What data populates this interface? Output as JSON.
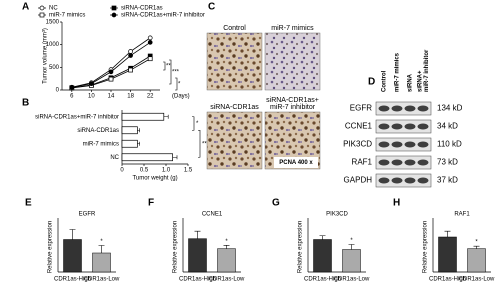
{
  "panels": [
    "A",
    "B",
    "C",
    "D",
    "E",
    "F",
    "G",
    "H"
  ],
  "chart_data": [
    {
      "type": "line",
      "y_label": "Tumor volume (mm³)",
      "x_label": "(Days)",
      "x": [
        6,
        10,
        14,
        18,
        22
      ],
      "xlim": [
        4,
        24
      ],
      "xticks": [
        6,
        10,
        14,
        18,
        22
      ],
      "ylim": [
        0,
        1500
      ],
      "yticks": [
        0,
        500,
        1000,
        1500
      ],
      "series": [
        {
          "name": "NC",
          "color": "#000000",
          "marker": "circle-open",
          "values": [
            60,
            160,
            450,
            850,
            1150
          ]
        },
        {
          "name": "siRNA-CDR1as",
          "color": "#000000",
          "marker": "square-filled",
          "values": [
            50,
            110,
            270,
            480,
            750
          ]
        },
        {
          "name": "miR-7 mimics",
          "color": "#000000",
          "marker": "square-open",
          "values": [
            45,
            100,
            240,
            440,
            690
          ]
        },
        {
          "name": "siRNA-CDR1as+miR-7 inhibitor",
          "color": "#000000",
          "marker": "circle-filled",
          "values": [
            55,
            140,
            400,
            760,
            1050
          ]
        }
      ],
      "annotations": [
        "**",
        "***",
        "*"
      ]
    },
    {
      "type": "barh",
      "x_label": "Tumor weight (g)",
      "categories": [
        "siRNA-CDR1as+miR-7 inhibitor",
        "siRNA-CDR1as",
        "miR-7 mimics",
        "NC"
      ],
      "values": [
        0.95,
        0.35,
        0.35,
        1.15
      ],
      "errors": [
        0.1,
        0.05,
        0.05,
        0.1
      ],
      "color": "#ffffff",
      "xlim": [
        0,
        1.5
      ],
      "xticks": [
        0,
        0.5,
        {
          "value": 1,
          "label": "1.0"
        },
        1.5
      ],
      "annotations": [
        "*",
        "***"
      ]
    },
    {
      "type": "bar",
      "title": "EGFR",
      "y_label": "Relative expression",
      "categories": [
        "CDR1as-High",
        "CDR1as-Low"
      ],
      "values": [
        6.5,
        3.8
      ],
      "errors": [
        2,
        1.5
      ],
      "colors": [
        "#333333",
        "#aaaaaa"
      ],
      "ylim": [
        0,
        10
      ],
      "annotations": [
        "*"
      ]
    },
    {
      "type": "bar",
      "title": "CCNE1",
      "y_label": "Relative expression",
      "categories": [
        "CDR1as-High",
        "CDR1as-Low"
      ],
      "values": [
        4,
        2.8
      ],
      "errors": [
        0.9,
        0.4
      ],
      "colors": [
        "#333333",
        "#aaaaaa"
      ],
      "ylim": [
        0,
        6
      ],
      "annotations": [
        "*"
      ]
    },
    {
      "type": "bar",
      "title": "PIK3CD",
      "y_label": "Relative expression",
      "categories": [
        "CDR1as-High",
        "CDR1as-Low"
      ],
      "values": [
        2.6,
        1.8
      ],
      "errors": [
        0.3,
        0.4
      ],
      "colors": [
        "#333333",
        "#aaaaaa"
      ],
      "ylim": [
        0,
        4
      ],
      "annotations": [
        "*"
      ]
    },
    {
      "type": "bar",
      "title": "RAF1",
      "y_label": "Relative expression",
      "categories": [
        "CDR1as-High",
        "CDR1as-Low"
      ],
      "values": [
        4.2,
        2.8
      ],
      "errors": [
        0.7,
        0.3
      ],
      "colors": [
        "#333333",
        "#aaaaaa"
      ],
      "ylim": [
        0,
        6
      ],
      "annotations": [
        "*"
      ]
    }
  ],
  "ihc": {
    "labels": [
      [
        "Control"
      ],
      [
        "miR-7 mimics"
      ],
      [
        "siRNA-CDR1as"
      ],
      [
        "siRNA-CDR1as+",
        "miR-7 inhibitor"
      ]
    ],
    "stain": "PCNA 400 x"
  },
  "western_blot": {
    "columns": [
      [
        "Control"
      ],
      [
        "miR-7 mimics"
      ],
      [
        "siRNA"
      ],
      [
        "siRNA+",
        "miR-7 inhibitor"
      ]
    ],
    "rows": [
      {
        "protein": "EGFR",
        "size": "134 kD"
      },
      {
        "protein": "CCNE1",
        "size": "34 kD"
      },
      {
        "protein": "PIK3CD",
        "size": "110 kD"
      },
      {
        "protein": "RAF1",
        "size": "73 kD"
      },
      {
        "protein": "GAPDH",
        "size": "37 kD"
      }
    ]
  }
}
